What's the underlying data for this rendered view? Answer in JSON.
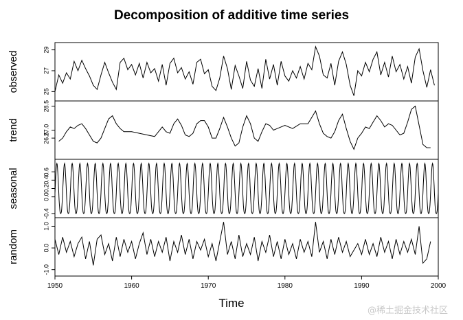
{
  "chart_data": {
    "type": "line",
    "title": "Decomposition of additive time series",
    "xlabel": "Time",
    "xlim": [
      1950,
      2000
    ],
    "x_ticks": [
      "1950",
      "1960",
      "1970",
      "1980",
      "1990",
      "2000"
    ],
    "grid": false,
    "panels": [
      {
        "name": "observed",
        "ylim": [
          24.3,
          29.5
        ],
        "y_ticks": [
          "25",
          "27",
          "29"
        ],
        "points": [
          [
            1950,
            25.0
          ],
          [
            1950.5,
            26.6
          ],
          [
            1951,
            25.8
          ],
          [
            1951.5,
            26.8
          ],
          [
            1952,
            26.2
          ],
          [
            1952.5,
            27.9
          ],
          [
            1953,
            27.0
          ],
          [
            1953.5,
            28.0
          ],
          [
            1954,
            27.2
          ],
          [
            1954.5,
            26.5
          ],
          [
            1955,
            25.6
          ],
          [
            1955.5,
            25.2
          ],
          [
            1956,
            26.6
          ],
          [
            1956.5,
            27.8
          ],
          [
            1957,
            26.8
          ],
          [
            1957.5,
            25.9
          ],
          [
            1958,
            25.2
          ],
          [
            1958.5,
            27.8
          ],
          [
            1959,
            28.2
          ],
          [
            1959.5,
            27.1
          ],
          [
            1960,
            27.6
          ],
          [
            1960.5,
            26.6
          ],
          [
            1961,
            27.7
          ],
          [
            1961.5,
            26.3
          ],
          [
            1962,
            27.8
          ],
          [
            1962.5,
            26.8
          ],
          [
            1963,
            27.2
          ],
          [
            1963.5,
            26.0
          ],
          [
            1964,
            27.6
          ],
          [
            1964.5,
            25.6
          ],
          [
            1965,
            27.7
          ],
          [
            1965.5,
            28.2
          ],
          [
            1966,
            26.8
          ],
          [
            1966.5,
            27.3
          ],
          [
            1967,
            26.2
          ],
          [
            1967.5,
            26.9
          ],
          [
            1968,
            25.7
          ],
          [
            1968.5,
            27.8
          ],
          [
            1969,
            28.1
          ],
          [
            1969.5,
            26.7
          ],
          [
            1970,
            27.1
          ],
          [
            1970.5,
            25.5
          ],
          [
            1971,
            25.1
          ],
          [
            1971.5,
            26.3
          ],
          [
            1972,
            28.4
          ],
          [
            1972.5,
            27.2
          ],
          [
            1973,
            25.2
          ],
          [
            1973.5,
            27.5
          ],
          [
            1974,
            26.5
          ],
          [
            1974.5,
            25.3
          ],
          [
            1975,
            27.9
          ],
          [
            1975.5,
            26.1
          ],
          [
            1976,
            25.5
          ],
          [
            1976.5,
            27.2
          ],
          [
            1977,
            25.3
          ],
          [
            1977.5,
            28.1
          ],
          [
            1978,
            26.2
          ],
          [
            1978.5,
            27.6
          ],
          [
            1979,
            25.6
          ],
          [
            1979.5,
            27.9
          ],
          [
            1980,
            26.5
          ],
          [
            1980.5,
            26.0
          ],
          [
            1981,
            27.0
          ],
          [
            1981.5,
            26.3
          ],
          [
            1982,
            27.4
          ],
          [
            1982.5,
            26.2
          ],
          [
            1983,
            27.7
          ],
          [
            1983.5,
            27.1
          ],
          [
            1984,
            29.3
          ],
          [
            1984.5,
            28.4
          ],
          [
            1985,
            26.6
          ],
          [
            1985.5,
            26.3
          ],
          [
            1986,
            27.7
          ],
          [
            1986.5,
            25.6
          ],
          [
            1987,
            27.9
          ],
          [
            1987.5,
            28.8
          ],
          [
            1988,
            27.6
          ],
          [
            1988.5,
            25.6
          ],
          [
            1989,
            24.6
          ],
          [
            1989.5,
            27.0
          ],
          [
            1990,
            26.5
          ],
          [
            1990.5,
            27.8
          ],
          [
            1991,
            26.9
          ],
          [
            1991.5,
            28.1
          ],
          [
            1992,
            28.8
          ],
          [
            1992.5,
            26.6
          ],
          [
            1993,
            27.8
          ],
          [
            1993.5,
            26.4
          ],
          [
            1994,
            28.4
          ],
          [
            1994.5,
            26.9
          ],
          [
            1995,
            27.6
          ],
          [
            1995.5,
            26.2
          ],
          [
            1996,
            27.4
          ],
          [
            1996.5,
            25.8
          ],
          [
            1997,
            28.3
          ],
          [
            1997.5,
            29.1
          ],
          [
            1998,
            27.0
          ],
          [
            1998.5,
            25.4
          ],
          [
            1999,
            27.1
          ],
          [
            1999.5,
            25.6
          ]
        ]
      },
      {
        "name": "trend",
        "ylim": [
          25.3,
          28.7
        ],
        "y_ticks": [
          "26.5",
          "27.0",
          "28.5"
        ],
        "points": [
          [
            1950.5,
            26.3
          ],
          [
            1951,
            26.5
          ],
          [
            1951.5,
            26.9
          ],
          [
            1952,
            27.2
          ],
          [
            1952.5,
            27.1
          ],
          [
            1953,
            27.3
          ],
          [
            1953.5,
            27.4
          ],
          [
            1954,
            27.1
          ],
          [
            1954.5,
            26.7
          ],
          [
            1955,
            26.3
          ],
          [
            1955.5,
            26.2
          ],
          [
            1956,
            26.5
          ],
          [
            1956.5,
            27.1
          ],
          [
            1957,
            27.7
          ],
          [
            1957.5,
            27.9
          ],
          [
            1958,
            27.4
          ],
          [
            1958.5,
            27.1
          ],
          [
            1959,
            26.9
          ],
          [
            1960,
            26.9
          ],
          [
            1961,
            26.8
          ],
          [
            1962,
            26.7
          ],
          [
            1963,
            26.6
          ],
          [
            1963.5,
            26.9
          ],
          [
            1964,
            27.2
          ],
          [
            1964.5,
            26.9
          ],
          [
            1965,
            26.8
          ],
          [
            1965.5,
            27.4
          ],
          [
            1966,
            27.7
          ],
          [
            1966.5,
            27.3
          ],
          [
            1967,
            26.7
          ],
          [
            1967.5,
            26.6
          ],
          [
            1968,
            26.8
          ],
          [
            1968.5,
            27.4
          ],
          [
            1969,
            27.6
          ],
          [
            1969.5,
            27.6
          ],
          [
            1970,
            27.2
          ],
          [
            1970.5,
            26.5
          ],
          [
            1971,
            26.5
          ],
          [
            1971.5,
            27.1
          ],
          [
            1972,
            27.8
          ],
          [
            1972.5,
            27.2
          ],
          [
            1973,
            26.5
          ],
          [
            1973.5,
            26.0
          ],
          [
            1974,
            26.2
          ],
          [
            1974.5,
            27.2
          ],
          [
            1975,
            27.9
          ],
          [
            1975.5,
            27.4
          ],
          [
            1976,
            26.5
          ],
          [
            1976.5,
            26.3
          ],
          [
            1977,
            26.9
          ],
          [
            1977.5,
            27.4
          ],
          [
            1978,
            27.3
          ],
          [
            1978.5,
            27.0
          ],
          [
            1979,
            27.1
          ],
          [
            1980,
            27.3
          ],
          [
            1981,
            27.1
          ],
          [
            1982,
            27.4
          ],
          [
            1983,
            27.4
          ],
          [
            1983.5,
            27.8
          ],
          [
            1984,
            28.2
          ],
          [
            1984.5,
            27.4
          ],
          [
            1985,
            26.8
          ],
          [
            1985.5,
            26.6
          ],
          [
            1986,
            26.5
          ],
          [
            1986.5,
            26.9
          ],
          [
            1987,
            27.6
          ],
          [
            1987.5,
            28.0
          ],
          [
            1988,
            27.1
          ],
          [
            1988.5,
            26.3
          ],
          [
            1989,
            25.8
          ],
          [
            1989.5,
            26.5
          ],
          [
            1990,
            26.8
          ],
          [
            1990.5,
            27.2
          ],
          [
            1991,
            27.1
          ],
          [
            1991.5,
            27.5
          ],
          [
            1992,
            27.9
          ],
          [
            1992.5,
            27.6
          ],
          [
            1993,
            27.2
          ],
          [
            1993.5,
            27.4
          ],
          [
            1994,
            27.3
          ],
          [
            1994.5,
            27.0
          ],
          [
            1995,
            26.7
          ],
          [
            1995.5,
            26.8
          ],
          [
            1996,
            27.5
          ],
          [
            1996.5,
            28.3
          ],
          [
            1997,
            28.5
          ],
          [
            1997.5,
            27.3
          ],
          [
            1998,
            26.1
          ],
          [
            1998.5,
            25.9
          ],
          [
            1999,
            25.9
          ]
        ]
      },
      {
        "name": "seasonal",
        "ylim": [
          -0.45,
          0.85
        ],
        "y_ticks": [
          "-0.4",
          "0.0",
          "0.2",
          "0.4",
          "0.6"
        ],
        "period": 1,
        "amplitude": [
          -0.4,
          0.8
        ],
        "cycles": 50
      },
      {
        "name": "random",
        "ylim": [
          -1.2,
          1.3
        ],
        "y_ticks": [
          "-1.0",
          "0.0",
          "1.0"
        ],
        "points": [
          [
            1950,
            0.4
          ],
          [
            1950.5,
            -0.3
          ],
          [
            1951,
            0.5
          ],
          [
            1951.5,
            -0.2
          ],
          [
            1952,
            0.3
          ],
          [
            1952.5,
            -0.4
          ],
          [
            1953,
            0.2
          ],
          [
            1953.5,
            0.5
          ],
          [
            1954,
            -0.5
          ],
          [
            1954.5,
            0.3
          ],
          [
            1955,
            -0.8
          ],
          [
            1955.5,
            0.4
          ],
          [
            1956,
            0.6
          ],
          [
            1956.5,
            -0.3
          ],
          [
            1957,
            0.2
          ],
          [
            1957.5,
            -0.6
          ],
          [
            1958,
            0.5
          ],
          [
            1958.5,
            -0.4
          ],
          [
            1959,
            0.4
          ],
          [
            1959.5,
            -0.2
          ],
          [
            1960,
            0.3
          ],
          [
            1960.5,
            -0.5
          ],
          [
            1961,
            0.2
          ],
          [
            1961.5,
            0.7
          ],
          [
            1962,
            -0.3
          ],
          [
            1962.5,
            0.4
          ],
          [
            1963,
            -0.4
          ],
          [
            1963.5,
            0.3
          ],
          [
            1964,
            -0.2
          ],
          [
            1964.5,
            0.5
          ],
          [
            1965,
            -0.6
          ],
          [
            1965.5,
            0.3
          ],
          [
            1966,
            -0.2
          ],
          [
            1966.5,
            0.6
          ],
          [
            1967,
            -0.3
          ],
          [
            1967.5,
            0.4
          ],
          [
            1968,
            -0.5
          ],
          [
            1968.5,
            0.3
          ],
          [
            1969,
            -0.1
          ],
          [
            1969.5,
            0.4
          ],
          [
            1970,
            -0.4
          ],
          [
            1970.5,
            0.2
          ],
          [
            1971,
            -0.6
          ],
          [
            1971.5,
            0.3
          ],
          [
            1972,
            1.2
          ],
          [
            1972.5,
            -0.3
          ],
          [
            1973,
            0.3
          ],
          [
            1973.5,
            -0.5
          ],
          [
            1974,
            0.6
          ],
          [
            1974.5,
            -0.4
          ],
          [
            1975,
            0.2
          ],
          [
            1975.5,
            -0.3
          ],
          [
            1976,
            0.5
          ],
          [
            1976.5,
            -0.6
          ],
          [
            1977,
            0.3
          ],
          [
            1977.5,
            -0.2
          ],
          [
            1978,
            0.6
          ],
          [
            1978.5,
            -0.4
          ],
          [
            1979,
            0.3
          ],
          [
            1979.5,
            -0.5
          ],
          [
            1980,
            0.4
          ],
          [
            1980.5,
            -0.3
          ],
          [
            1981,
            0.2
          ],
          [
            1981.5,
            -0.5
          ],
          [
            1982,
            0.4
          ],
          [
            1982.5,
            -0.2
          ],
          [
            1983,
            0.3
          ],
          [
            1983.5,
            -0.4
          ],
          [
            1984,
            1.2
          ],
          [
            1984.5,
            -0.2
          ],
          [
            1985,
            0.3
          ],
          [
            1985.5,
            -0.5
          ],
          [
            1986,
            0.4
          ],
          [
            1986.5,
            -0.3
          ],
          [
            1987,
            0.5
          ],
          [
            1987.5,
            -0.2
          ],
          [
            1988,
            0.3
          ],
          [
            1988.5,
            -0.4
          ],
          [
            1989,
            -0.1
          ],
          [
            1989.5,
            0.2
          ],
          [
            1990,
            -0.3
          ],
          [
            1990.5,
            0.4
          ],
          [
            1991,
            -0.3
          ],
          [
            1991.5,
            0.2
          ],
          [
            1992,
            -0.4
          ],
          [
            1992.5,
            0.5
          ],
          [
            1993,
            -0.2
          ],
          [
            1993.5,
            0.3
          ],
          [
            1994,
            -0.5
          ],
          [
            1994.5,
            0.4
          ],
          [
            1995,
            -0.3
          ],
          [
            1995.5,
            0.3
          ],
          [
            1996,
            -0.2
          ],
          [
            1996.5,
            0.4
          ],
          [
            1997,
            -0.3
          ],
          [
            1997.5,
            1.0
          ],
          [
            1998,
            -0.7
          ],
          [
            1998.5,
            -0.5
          ],
          [
            1999,
            0.3
          ]
        ]
      }
    ]
  },
  "watermark": "@稀土掘金技术社区"
}
